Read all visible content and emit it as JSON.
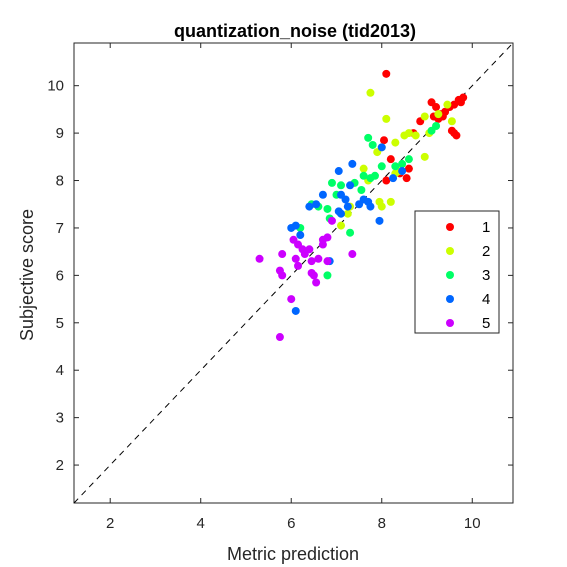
{
  "chart_data": {
    "type": "scatter",
    "title": "quantization_noise (tid2013)",
    "xlabel": "Metric prediction",
    "ylabel": "Subjective score",
    "xlim": [
      1.2,
      10.9
    ],
    "ylim": [
      1.2,
      10.9
    ],
    "xticks": [
      2,
      4,
      6,
      8,
      10
    ],
    "yticks": [
      2,
      3,
      4,
      5,
      6,
      7,
      8,
      9,
      10
    ],
    "grid": false,
    "reference_line": "identity",
    "legend_position": "right",
    "series": [
      {
        "name": "1",
        "color": "#ff0000",
        "points": [
          [
            8.1,
            10.25
          ],
          [
            9.1,
            9.65
          ],
          [
            9.2,
            9.55
          ],
          [
            9.15,
            9.35
          ],
          [
            9.3,
            9.4
          ],
          [
            9.4,
            9.45
          ],
          [
            9.5,
            9.55
          ],
          [
            9.6,
            9.6
          ],
          [
            9.7,
            9.7
          ],
          [
            9.8,
            9.75
          ],
          [
            9.75,
            9.65
          ],
          [
            9.25,
            9.3
          ],
          [
            9.35,
            9.35
          ],
          [
            9.55,
            9.05
          ],
          [
            9.6,
            9.0
          ],
          [
            9.65,
            8.95
          ],
          [
            8.85,
            9.25
          ],
          [
            8.7,
            9.0
          ],
          [
            8.05,
            8.85
          ],
          [
            8.2,
            8.45
          ],
          [
            8.6,
            8.25
          ],
          [
            8.4,
            8.15
          ],
          [
            8.55,
            8.05
          ],
          [
            8.1,
            8.0
          ]
        ]
      },
      {
        "name": "2",
        "color": "#ccff00",
        "points": [
          [
            7.75,
            9.85
          ],
          [
            8.1,
            9.3
          ],
          [
            8.95,
            9.35
          ],
          [
            9.25,
            9.4
          ],
          [
            9.45,
            9.6
          ],
          [
            9.55,
            9.25
          ],
          [
            9.05,
            9.0
          ],
          [
            8.5,
            8.95
          ],
          [
            8.6,
            9.0
          ],
          [
            8.75,
            8.95
          ],
          [
            8.3,
            8.8
          ],
          [
            8.0,
            8.7
          ],
          [
            7.9,
            8.6
          ],
          [
            7.6,
            8.25
          ],
          [
            7.7,
            8.0
          ],
          [
            8.3,
            8.15
          ],
          [
            8.4,
            8.2
          ],
          [
            8.95,
            8.5
          ],
          [
            7.95,
            7.55
          ],
          [
            8.2,
            7.55
          ],
          [
            7.3,
            7.45
          ],
          [
            7.25,
            7.3
          ],
          [
            7.1,
            7.05
          ],
          [
            8.0,
            7.45
          ]
        ]
      },
      {
        "name": "3",
        "color": "#00ff66",
        "points": [
          [
            7.7,
            8.9
          ],
          [
            7.8,
            8.75
          ],
          [
            8.0,
            8.3
          ],
          [
            7.6,
            8.1
          ],
          [
            7.4,
            7.95
          ],
          [
            7.75,
            8.05
          ],
          [
            7.85,
            8.1
          ],
          [
            8.3,
            8.3
          ],
          [
            8.45,
            8.35
          ],
          [
            8.6,
            8.45
          ],
          [
            9.1,
            9.05
          ],
          [
            9.2,
            9.15
          ],
          [
            7.55,
            7.8
          ],
          [
            7.1,
            7.9
          ],
          [
            6.9,
            7.95
          ],
          [
            7.0,
            7.7
          ],
          [
            6.8,
            7.4
          ],
          [
            6.6,
            7.45
          ],
          [
            6.45,
            7.5
          ],
          [
            6.85,
            7.2
          ],
          [
            6.8,
            6.0
          ],
          [
            7.3,
            6.9
          ],
          [
            6.2,
            7.0
          ]
        ]
      },
      {
        "name": "4",
        "color": "#0066ff",
        "points": [
          [
            8.0,
            8.7
          ],
          [
            7.35,
            8.35
          ],
          [
            7.05,
            8.2
          ],
          [
            7.3,
            7.9
          ],
          [
            7.6,
            7.6
          ],
          [
            7.75,
            7.45
          ],
          [
            7.7,
            7.55
          ],
          [
            7.5,
            7.5
          ],
          [
            7.25,
            7.45
          ],
          [
            7.05,
            7.35
          ],
          [
            7.2,
            7.6
          ],
          [
            7.1,
            7.7
          ],
          [
            6.7,
            7.7
          ],
          [
            6.55,
            7.5
          ],
          [
            6.4,
            7.45
          ],
          [
            6.1,
            7.05
          ],
          [
            6.0,
            7.0
          ],
          [
            6.2,
            6.85
          ],
          [
            6.85,
            6.3
          ],
          [
            7.95,
            7.15
          ],
          [
            6.1,
            5.25
          ],
          [
            7.1,
            7.3
          ],
          [
            8.25,
            8.05
          ],
          [
            8.45,
            8.2
          ]
        ]
      },
      {
        "name": "5",
        "color": "#cc00ff",
        "points": [
          [
            5.3,
            6.35
          ],
          [
            5.8,
            6.45
          ],
          [
            5.75,
            6.1
          ],
          [
            5.8,
            6.0
          ],
          [
            6.05,
            6.75
          ],
          [
            6.15,
            6.65
          ],
          [
            6.25,
            6.55
          ],
          [
            6.4,
            6.55
          ],
          [
            6.45,
            6.3
          ],
          [
            6.5,
            6.0
          ],
          [
            6.1,
            6.35
          ],
          [
            6.15,
            6.2
          ],
          [
            6.3,
            6.45
          ],
          [
            6.7,
            6.75
          ],
          [
            6.7,
            6.65
          ],
          [
            6.8,
            6.8
          ],
          [
            6.6,
            6.35
          ],
          [
            6.8,
            6.3
          ],
          [
            6.55,
            5.85
          ],
          [
            6.0,
            5.5
          ],
          [
            5.75,
            4.7
          ],
          [
            6.45,
            6.05
          ],
          [
            7.35,
            6.45
          ],
          [
            6.9,
            7.15
          ]
        ]
      }
    ]
  }
}
